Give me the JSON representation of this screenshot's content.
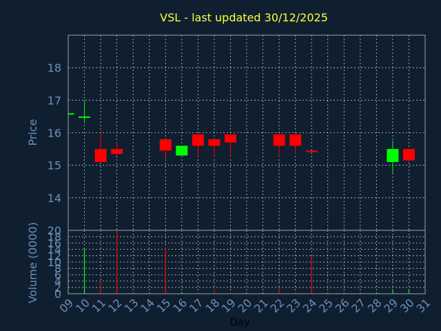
{
  "chart_data": [
    {
      "type": "candlestick",
      "title": "VSL - last updated 30/12/2025",
      "ylabel": "Price",
      "xlim": [
        9,
        31
      ],
      "ylim": [
        13,
        19
      ],
      "yticks": [
        14,
        15,
        16,
        17,
        18
      ],
      "grid": true,
      "colors": {
        "up": "#00ff00",
        "down": "#ff0000",
        "frame": "#9aa3ad",
        "grid": "#c8c8c8",
        "text": "#6e8fb5",
        "title": "#ffff3c",
        "background": "#0f1f30"
      },
      "candles": [
        {
          "day": 9,
          "open": 16.6,
          "high": 16.6,
          "low": 16.6,
          "close": 16.6
        },
        {
          "day": 10,
          "open": 16.5,
          "high": 17.0,
          "low": 16.3,
          "close": 16.5
        },
        {
          "day": 11,
          "open": 15.5,
          "high": 16.0,
          "low": 15.1,
          "close": 15.1
        },
        {
          "day": 12,
          "open": 15.5,
          "high": 15.7,
          "low": 15.3,
          "close": 15.35
        },
        {
          "day": 15,
          "open": 15.8,
          "high": 15.8,
          "low": 15.2,
          "close": 15.45
        },
        {
          "day": 16,
          "open": 15.3,
          "high": 15.6,
          "low": 15.3,
          "close": 15.6
        },
        {
          "day": 17,
          "open": 15.95,
          "high": 15.95,
          "low": 15.25,
          "close": 15.6
        },
        {
          "day": 18,
          "open": 15.8,
          "high": 15.8,
          "low": 15.25,
          "close": 15.6
        },
        {
          "day": 19,
          "open": 15.95,
          "high": 15.95,
          "low": 15.25,
          "close": 15.7
        },
        {
          "day": 22,
          "open": 15.95,
          "high": 15.95,
          "low": 15.25,
          "close": 15.6
        },
        {
          "day": 23,
          "open": 15.95,
          "high": 15.95,
          "low": 15.35,
          "close": 15.6
        },
        {
          "day": 24,
          "open": 15.45,
          "high": 15.45,
          "low": 15.4,
          "close": 15.42
        },
        {
          "day": 29,
          "open": 15.1,
          "high": 15.75,
          "low": 14.75,
          "close": 15.5
        },
        {
          "day": 30,
          "open": 15.5,
          "high": 15.5,
          "low": 15.1,
          "close": 15.15
        }
      ]
    },
    {
      "type": "bar",
      "ylabel": "Volume (0000)",
      "xlabel": "Day",
      "xlim": [
        9,
        31
      ],
      "ylim": [
        0,
        20
      ],
      "yticks": [
        0,
        2,
        4,
        6,
        8,
        10,
        12,
        14,
        16,
        18,
        20
      ],
      "xticks": [
        "09",
        "10",
        "11",
        "12",
        "13",
        "14",
        "15",
        "16",
        "17",
        "18",
        "19",
        "20",
        "21",
        "22",
        "23",
        "24",
        "25",
        "26",
        "27",
        "28",
        "29",
        "30",
        "31"
      ],
      "grid": true,
      "volumes": [
        {
          "day": 9,
          "value": 0.1,
          "color": "#00ff00"
        },
        {
          "day": 10,
          "value": 14.5,
          "color": "#00ff00"
        },
        {
          "day": 11,
          "value": 4.0,
          "color": "#ff0000"
        },
        {
          "day": 12,
          "value": 20.0,
          "color": "#ff0000"
        },
        {
          "day": 15,
          "value": 14.5,
          "color": "#ff0000"
        },
        {
          "day": 16,
          "value": 0.5,
          "color": "#00ff00"
        },
        {
          "day": 17,
          "value": 0.5,
          "color": "#ff0000"
        },
        {
          "day": 18,
          "value": 1.5,
          "color": "#ff0000"
        },
        {
          "day": 19,
          "value": 0.5,
          "color": "#ff0000"
        },
        {
          "day": 22,
          "value": 2.0,
          "color": "#ff0000"
        },
        {
          "day": 23,
          "value": 0.5,
          "color": "#ff0000"
        },
        {
          "day": 24,
          "value": 12.0,
          "color": "#ff0000"
        },
        {
          "day": 29,
          "value": 1.5,
          "color": "#00ff00"
        },
        {
          "day": 30,
          "value": 1.5,
          "color": "#00ff00"
        }
      ]
    }
  ]
}
